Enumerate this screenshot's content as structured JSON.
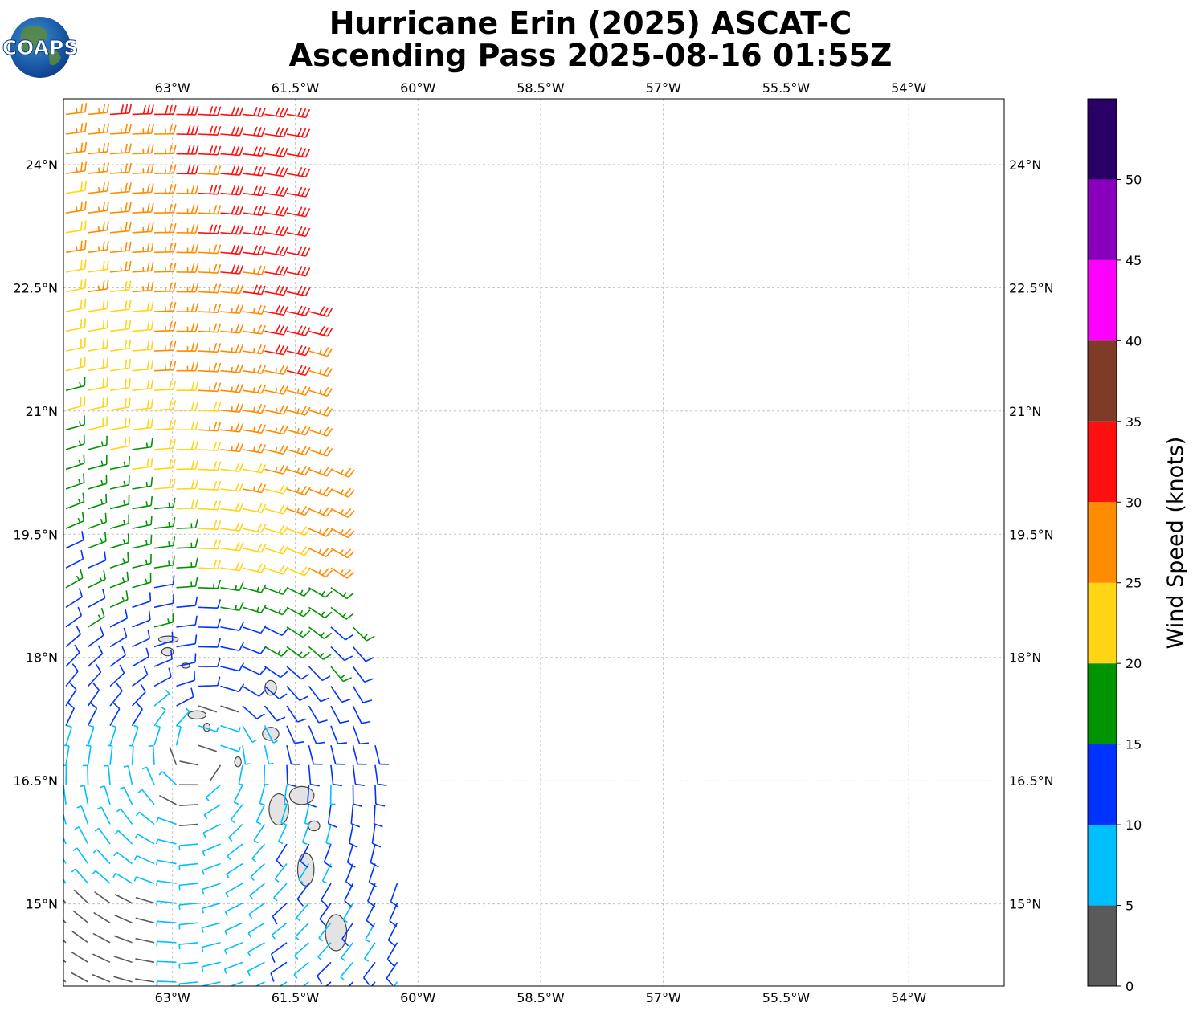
{
  "title": {
    "line1": "Hurricane Erin (2025) ASCAT-C",
    "line2": "Ascending Pass 2025-08-16 01:55Z"
  },
  "logo": {
    "text": "COAPS"
  },
  "map": {
    "lon_range": [
      -64.333,
      -52.833
    ],
    "lat_range": [
      14.0,
      24.8
    ],
    "lon_ticks": [
      {
        "value": -63.0,
        "label": "63°W"
      },
      {
        "value": -61.5,
        "label": "61.5°W"
      },
      {
        "value": -60.0,
        "label": "60°W"
      },
      {
        "value": -58.5,
        "label": "58.5°W"
      },
      {
        "value": -57.0,
        "label": "57°W"
      },
      {
        "value": -55.5,
        "label": "55.5°W"
      },
      {
        "value": -54.0,
        "label": "54°W"
      }
    ],
    "lat_ticks": [
      {
        "value": 24.0,
        "label": "24°N"
      },
      {
        "value": 22.5,
        "label": "22.5°N"
      },
      {
        "value": 21.0,
        "label": "21°N"
      },
      {
        "value": 19.5,
        "label": "19.5°N"
      },
      {
        "value": 18.0,
        "label": "18°N"
      },
      {
        "value": 16.5,
        "label": "16.5°N"
      },
      {
        "value": 15.0,
        "label": "15°N"
      }
    ],
    "grid": true,
    "storm_center": {
      "lon": -62.55,
      "lat": 17.15
    },
    "swath_east_edge": [
      [
        -60.05,
        14.0
      ],
      [
        -60.5,
        16.8
      ],
      [
        -60.95,
        19.5
      ],
      [
        -61.3,
        22.0
      ],
      [
        -61.55,
        24.8
      ]
    ],
    "colors": {
      "grid": "#b8b8b8",
      "coast": "#444444",
      "land": "#e3e3e3"
    }
  },
  "colorbar": {
    "label": "Wind Speed (knots)",
    "min": 0,
    "max": 55,
    "ticks": [
      0,
      5,
      10,
      15,
      20,
      25,
      30,
      35,
      40,
      45,
      50
    ],
    "bins": [
      {
        "from": 0,
        "to": 5,
        "color": "#5a5a5a"
      },
      {
        "from": 5,
        "to": 10,
        "color": "#00bfff"
      },
      {
        "from": 10,
        "to": 15,
        "color": "#0033ff"
      },
      {
        "from": 15,
        "to": 20,
        "color": "#009400"
      },
      {
        "from": 20,
        "to": 25,
        "color": "#ffd515"
      },
      {
        "from": 25,
        "to": 30,
        "color": "#ff8c00"
      },
      {
        "from": 30,
        "to": 35,
        "color": "#ff1010"
      },
      {
        "from": 35,
        "to": 40,
        "color": "#7f3b28"
      },
      {
        "from": 40,
        "to": 45,
        "color": "#ff00ff"
      },
      {
        "from": 45,
        "to": 50,
        "color": "#8800bb"
      },
      {
        "from": 50,
        "to": 55,
        "color": "#2b0066"
      }
    ]
  },
  "islands": [
    {
      "name": "Anguilla",
      "lon": -63.05,
      "lat": 18.22,
      "rx": 0.12,
      "ry": 0.04
    },
    {
      "name": "St Martin",
      "lon": -63.06,
      "lat": 18.07,
      "rx": 0.07,
      "ry": 0.05
    },
    {
      "name": "St Barthelemy",
      "lon": -62.84,
      "lat": 17.9,
      "rx": 0.05,
      "ry": 0.03
    },
    {
      "name": "Barbuda",
      "lon": -61.8,
      "lat": 17.63,
      "rx": 0.07,
      "ry": 0.09
    },
    {
      "name": "Antigua",
      "lon": -61.8,
      "lat": 17.07,
      "rx": 0.1,
      "ry": 0.08
    },
    {
      "name": "St Kitts",
      "lon": -62.7,
      "lat": 17.3,
      "rx": 0.11,
      "ry": 0.05
    },
    {
      "name": "Nevis",
      "lon": -62.58,
      "lat": 17.15,
      "rx": 0.04,
      "ry": 0.05
    },
    {
      "name": "Montserrat",
      "lon": -62.2,
      "lat": 16.73,
      "rx": 0.04,
      "ry": 0.06
    },
    {
      "name": "Guadeloupe Basse-Terre",
      "lon": -61.7,
      "lat": 16.15,
      "rx": 0.12,
      "ry": 0.19
    },
    {
      "name": "Guadeloupe Grande-Terre",
      "lon": -61.42,
      "lat": 16.32,
      "rx": 0.15,
      "ry": 0.11
    },
    {
      "name": "Marie-Galante",
      "lon": -61.27,
      "lat": 15.95,
      "rx": 0.07,
      "ry": 0.06
    },
    {
      "name": "Dominica",
      "lon": -61.37,
      "lat": 15.42,
      "rx": 0.1,
      "ry": 0.2
    },
    {
      "name": "Martinique",
      "lon": -61.0,
      "lat": 14.65,
      "rx": 0.13,
      "ry": 0.22
    }
  ]
}
